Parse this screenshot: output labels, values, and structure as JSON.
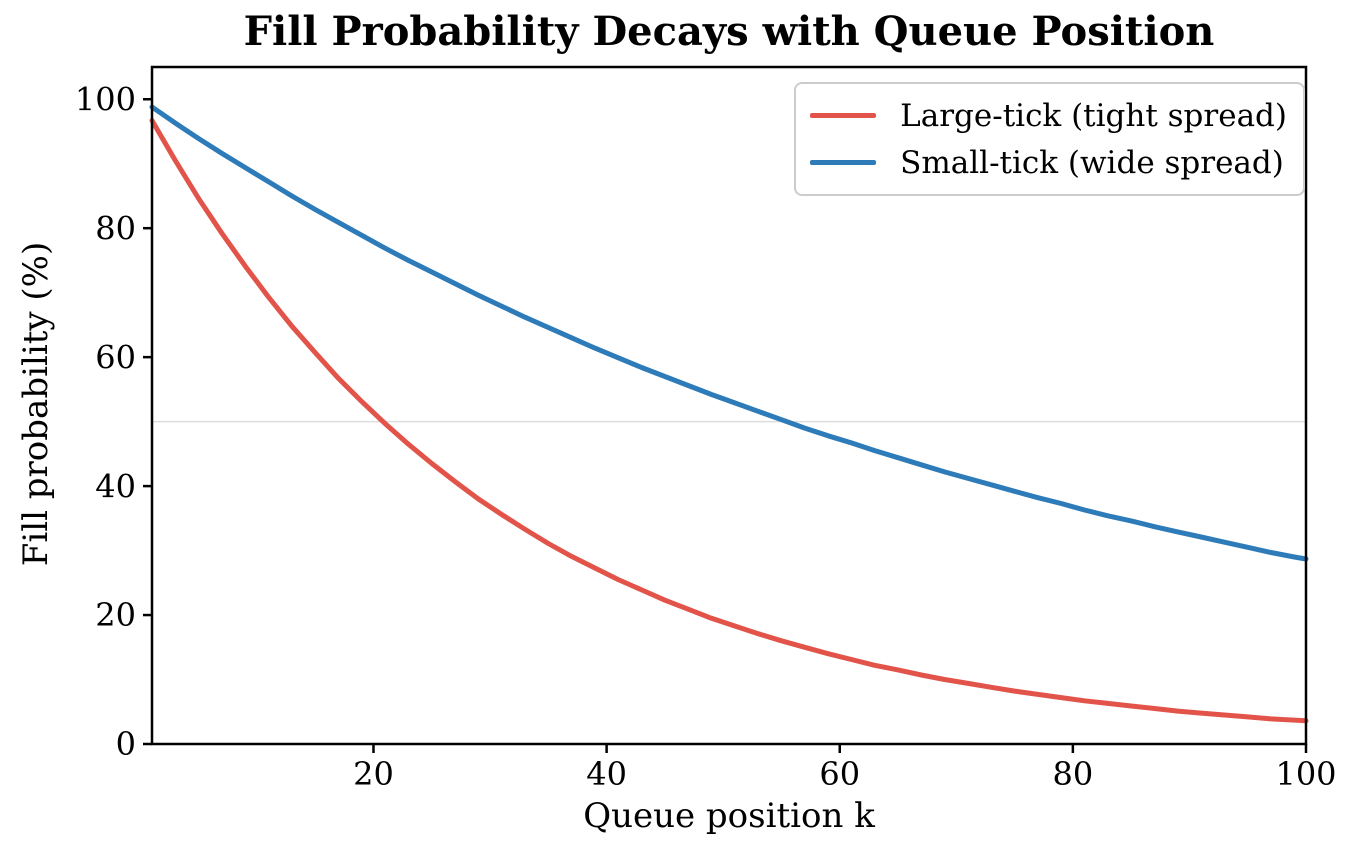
{
  "chart": {
    "title": "Fill Probability Decays with Queue Position",
    "xlabel": "Queue position k",
    "ylabel": "Fill probability (%)"
  },
  "chart_data": {
    "type": "line",
    "title": "Fill Probability Decays with Queue Position",
    "xlabel": "Queue position k",
    "ylabel": "Fill probability (%)",
    "xlim": [
      1,
      100
    ],
    "ylim": [
      0,
      105
    ],
    "xticks": [
      20,
      40,
      60,
      80,
      100
    ],
    "yticks": [
      0,
      20,
      40,
      60,
      80,
      100
    ],
    "gridlines_y": [
      50
    ],
    "grid_color": "#dddddd",
    "spine_color": "#000000",
    "background": "#ffffff",
    "legend_position": "upper right",
    "x": [
      1,
      3,
      5,
      7,
      9,
      11,
      13,
      15,
      17,
      19,
      21,
      23,
      25,
      27,
      29,
      31,
      33,
      35,
      37,
      39,
      41,
      43,
      45,
      47,
      49,
      51,
      53,
      55,
      57,
      59,
      61,
      63,
      65,
      67,
      69,
      71,
      73,
      75,
      77,
      79,
      81,
      83,
      85,
      87,
      89,
      91,
      93,
      95,
      97,
      99,
      100
    ],
    "series": [
      {
        "name": "Large-tick (tight spread)",
        "color": "#e2544a",
        "values": [
          96.7,
          90.5,
          84.6,
          79.2,
          74.1,
          69.3,
          64.8,
          60.7,
          56.7,
          53.1,
          49.7,
          46.5,
          43.5,
          40.7,
          38.0,
          35.6,
          33.3,
          31.1,
          29.1,
          27.3,
          25.5,
          23.9,
          22.3,
          20.9,
          19.5,
          18.3,
          17.1,
          16.0,
          15.0,
          14.0,
          13.1,
          12.2,
          11.5,
          10.7,
          10.0,
          9.4,
          8.8,
          8.2,
          7.7,
          7.2,
          6.7,
          6.3,
          5.9,
          5.5,
          5.1,
          4.8,
          4.5,
          4.2,
          3.9,
          3.7,
          3.6
        ]
      },
      {
        "name": "Small-tick (wide spread)",
        "color": "#2d7bb8",
        "values": [
          98.8,
          96.3,
          93.9,
          91.6,
          89.4,
          87.2,
          85.0,
          82.9,
          80.9,
          78.9,
          76.9,
          75.0,
          73.2,
          71.4,
          69.6,
          67.9,
          66.2,
          64.6,
          63.0,
          61.4,
          59.9,
          58.4,
          57.0,
          55.6,
          54.2,
          52.9,
          51.6,
          50.3,
          49.0,
          47.8,
          46.7,
          45.5,
          44.4,
          43.3,
          42.2,
          41.2,
          40.2,
          39.2,
          38.2,
          37.3,
          36.3,
          35.4,
          34.6,
          33.7,
          32.9,
          32.1,
          31.3,
          30.5,
          29.7,
          29.0,
          28.7
        ]
      }
    ]
  }
}
